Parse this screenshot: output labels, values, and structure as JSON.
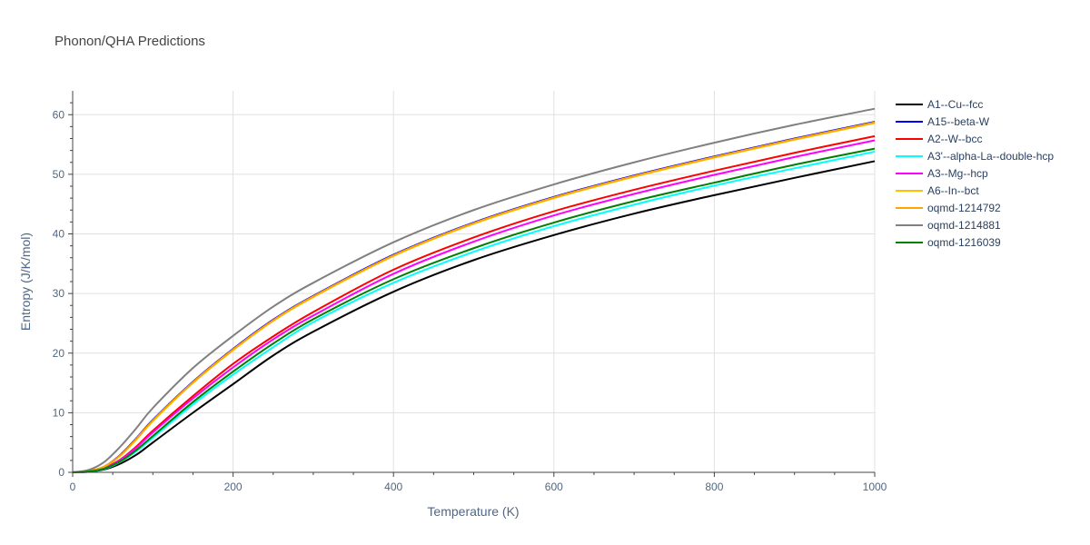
{
  "chart_data": {
    "type": "line",
    "title": "Phonon/QHA Predictions",
    "xlabel": "Temperature (K)",
    "ylabel": "Entropy (J/K/mol)",
    "xlim": [
      0,
      1000
    ],
    "ylim": [
      0,
      64
    ],
    "x_ticks": [
      0,
      200,
      400,
      600,
      800,
      1000
    ],
    "y_ticks": [
      0,
      10,
      20,
      30,
      40,
      50,
      60
    ],
    "grid": true,
    "legend_position": "right",
    "x": [
      0,
      20,
      40,
      60,
      80,
      100,
      150,
      200,
      250,
      300,
      400,
      500,
      600,
      700,
      800,
      900,
      1000
    ],
    "series": [
      {
        "name": "A1--Cu--fcc",
        "color": "#000000",
        "values": [
          0,
          0.1,
          0.5,
          1.5,
          3.0,
          5.0,
          10.0,
          14.8,
          19.6,
          23.6,
          30.3,
          35.6,
          39.8,
          43.4,
          46.5,
          49.4,
          52.2
        ]
      },
      {
        "name": "A15--beta-W",
        "color": "#0000ff",
        "values": [
          0,
          0.2,
          1.0,
          3.0,
          5.8,
          8.8,
          15.2,
          20.7,
          25.6,
          29.6,
          36.5,
          41.9,
          46.2,
          49.8,
          53.0,
          56.0,
          58.8
        ]
      },
      {
        "name": "A2--W--bcc",
        "color": "#ff0000",
        "values": [
          0,
          0.15,
          0.8,
          2.2,
          4.4,
          7.0,
          12.8,
          18.2,
          22.8,
          26.9,
          34.0,
          39.4,
          43.8,
          47.4,
          50.6,
          53.6,
          56.4
        ]
      },
      {
        "name": "A3'--alpha-La--double-hcp",
        "color": "#00ffff",
        "values": [
          0,
          0.12,
          0.6,
          1.8,
          3.6,
          5.8,
          11.4,
          16.4,
          21.0,
          25.2,
          31.8,
          37.0,
          41.3,
          44.9,
          48.1,
          51.0,
          53.8
        ]
      },
      {
        "name": "A3--Mg--hcp",
        "color": "#ff00ff",
        "values": [
          0,
          0.14,
          0.75,
          2.1,
          4.2,
          6.7,
          12.4,
          17.6,
          22.3,
          26.3,
          33.3,
          38.7,
          43.1,
          46.7,
          49.9,
          52.9,
          55.7
        ]
      },
      {
        "name": "A6--In--bct",
        "color": "#ffc000",
        "values": [
          0,
          0.2,
          1.0,
          2.9,
          5.6,
          8.6,
          15.0,
          20.5,
          25.4,
          29.4,
          36.3,
          41.7,
          46.0,
          49.6,
          52.8,
          55.8,
          58.6
        ]
      },
      {
        "name": "oqmd-1214792",
        "color": "#ffa500",
        "values": [
          0,
          0.2,
          1.0,
          2.9,
          5.7,
          8.7,
          15.1,
          20.6,
          25.5,
          29.5,
          36.4,
          41.8,
          46.1,
          49.7,
          52.9,
          55.9,
          58.7
        ]
      },
      {
        "name": "oqmd-1214881",
        "color": "#808080",
        "values": [
          0,
          0.4,
          1.8,
          4.4,
          7.5,
          10.8,
          17.5,
          22.9,
          27.8,
          31.8,
          38.6,
          44.0,
          48.3,
          52.0,
          55.3,
          58.3,
          61.0
        ]
      },
      {
        "name": "oqmd-1216039",
        "color": "#008000",
        "values": [
          0,
          0.13,
          0.65,
          1.9,
          3.8,
          6.1,
          11.8,
          16.9,
          21.6,
          25.7,
          32.4,
          37.6,
          41.9,
          45.5,
          48.6,
          51.6,
          54.3
        ]
      }
    ]
  }
}
